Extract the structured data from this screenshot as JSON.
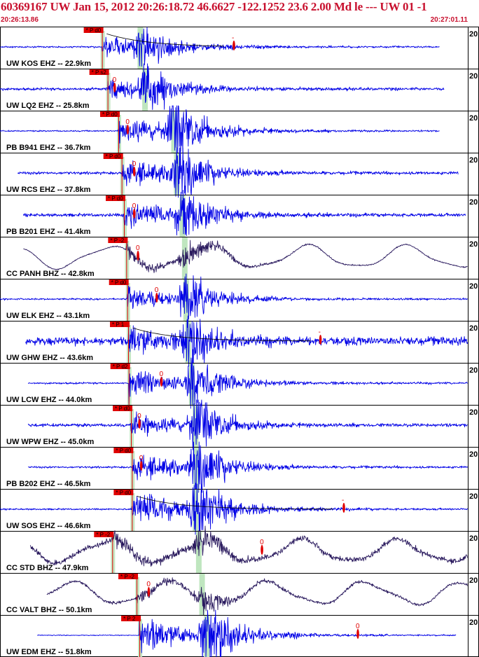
{
  "header": {
    "title": "60369167 UW Jan 15, 2012 20:26:18.72    46.6627 -122.1252 23.6 2.00 Md le --- UW 01   -1",
    "start_time": "20:26:13.86",
    "end_time": "20:27:01.11"
  },
  "colors": {
    "trace_short": "#0000e6",
    "trace_broadband": "#2a1a5e",
    "header_text": "#c8102e",
    "pick_box": "#e00000",
    "s_window": "#bfe6bf",
    "baseline_pick": "#2a2a2a"
  },
  "chart_data": {
    "type": "seismogram",
    "title": "60369167 UW Jan 15, 2012 20:26:18.72    46.6627 -122.1252 23.6 2.00 Md le --- UW 01   -1",
    "time_window": [
      "20:26:13.86",
      "20:27:01.11"
    ],
    "traces": [
      {
        "label": "UW KOS EHZ -- 22.9km",
        "gain": "20",
        "pick": "P d0",
        "station_type": "short",
        "pick_t": 0.218,
        "s_t": 0.3,
        "o_t": 0.5,
        "o_text": "-",
        "start_t": 0.0,
        "end_t": 0.94,
        "noise": 0.06,
        "eq_amp": 0.55,
        "coda_curve": true,
        "lp": false
      },
      {
        "label": "UW LQ2 EHZ -- 25.8km",
        "gain": "20",
        "pick": "P s2",
        "station_type": "short",
        "pick_t": 0.23,
        "s_t": 0.31,
        "o_t": 0.245,
        "o_text": "0",
        "start_t": 0.0,
        "end_t": 0.95,
        "noise": 0.1,
        "eq_amp": 0.6,
        "coda_curve": false,
        "lp": false
      },
      {
        "label": "PB B941 EHZ -- 36.7km",
        "gain": "20",
        "pick": "P d0",
        "station_type": "short",
        "pick_t": 0.253,
        "s_t": 0.372,
        "o_t": 0.273,
        "o_text": "0",
        "start_t": 0.0,
        "end_t": 0.94,
        "noise": 0.05,
        "eq_amp": 0.8,
        "coda_curve": false,
        "lp": false
      },
      {
        "label": "UW RCS EHZ -- 37.8km",
        "gain": "20",
        "pick": "P d0",
        "station_type": "short",
        "pick_t": 0.26,
        "s_t": 0.378,
        "o_t": 0.287,
        "o_text": "0",
        "start_t": 0.038,
        "end_t": 0.98,
        "noise": 0.1,
        "eq_amp": 0.75,
        "coda_curve": false,
        "lp": false
      },
      {
        "label": "PB B201 EHZ -- 41.4km",
        "gain": "20",
        "pick": "P d0",
        "station_type": "short",
        "pick_t": 0.265,
        "s_t": 0.39,
        "o_t": 0.287,
        "o_text": "0",
        "start_t": 0.05,
        "end_t": 0.995,
        "noise": 0.12,
        "eq_amp": 0.7,
        "coda_curve": false,
        "lp": false
      },
      {
        "label": "CC PANH BHZ -- 42.8km",
        "gain": "20",
        "pick": "P -2",
        "station_type": "broadband",
        "pick_t": 0.27,
        "s_t": 0.395,
        "o_t": 0.295,
        "o_text": "0",
        "start_t": 0.05,
        "end_t": 1.0,
        "noise": 0.04,
        "eq_amp": 0.3,
        "coda_curve": false,
        "lp": true
      },
      {
        "label": "UW ELK EHZ -- 43.1km",
        "gain": "20",
        "pick": "P d0",
        "station_type": "short",
        "pick_t": 0.272,
        "s_t": 0.398,
        "o_t": 0.335,
        "o_text": "0",
        "start_t": 0.0,
        "end_t": 1.0,
        "noise": 0.06,
        "eq_amp": 0.65,
        "coda_curve": false,
        "lp": false
      },
      {
        "label": "UW GHW EHZ -- 43.6km",
        "gain": "20",
        "pick": "P 1",
        "station_type": "short",
        "pick_t": 0.274,
        "s_t": 0.402,
        "o_t": 0.685,
        "o_text": "-",
        "start_t": 0.055,
        "end_t": 1.0,
        "noise": 0.3,
        "eq_amp": 0.75,
        "coda_curve": true,
        "lp": false
      },
      {
        "label": "UW LCW EHZ -- 44.0km",
        "gain": "20",
        "pick": "P d2",
        "station_type": "short",
        "pick_t": 0.275,
        "s_t": 0.41,
        "o_t": 0.345,
        "o_text": "0",
        "start_t": 0.06,
        "end_t": 1.0,
        "noise": 0.07,
        "eq_amp": 0.7,
        "coda_curve": false,
        "lp": false
      },
      {
        "label": "UW WPW EHZ -- 45.0km",
        "gain": "20",
        "pick": "P d0",
        "station_type": "short",
        "pick_t": 0.28,
        "s_t": 0.418,
        "o_t": 0.298,
        "o_text": "0",
        "start_t": 0.06,
        "end_t": 1.0,
        "noise": 0.12,
        "eq_amp": 0.7,
        "coda_curve": false,
        "lp": false
      },
      {
        "label": "PB B202 EHZ -- 46.5km",
        "gain": "20",
        "pick": "P d0",
        "station_type": "short",
        "pick_t": 0.282,
        "s_t": 0.42,
        "o_t": 0.302,
        "o_text": "0",
        "start_t": 0.06,
        "end_t": 1.0,
        "noise": 0.07,
        "eq_amp": 0.75,
        "coda_curve": false,
        "lp": false
      },
      {
        "label": "UW SOS EHZ -- 46.6km",
        "gain": "20",
        "pick": "P d0",
        "station_type": "short",
        "pick_t": 0.282,
        "s_t": 0.418,
        "o_t": 0.735,
        "o_text": "-",
        "start_t": 0.0,
        "end_t": 1.0,
        "noise": 0.06,
        "eq_amp": 0.85,
        "coda_curve": true,
        "lp": false
      },
      {
        "label": "CC STD BHZ -- 47.9km",
        "gain": "20",
        "pick": "P -2",
        "station_type": "broadband",
        "pick_t": 0.24,
        "s_t": 0.425,
        "o_t": 0.56,
        "o_text": "0",
        "start_t": 0.065,
        "end_t": 1.0,
        "noise": 0.2,
        "eq_amp": 0.35,
        "coda_curve": false,
        "lp": true
      },
      {
        "label": "CC VALT BHZ -- 50.1km",
        "gain": "20",
        "pick": "P -2",
        "station_type": "broadband",
        "pick_t": 0.292,
        "s_t": 0.432,
        "o_t": 0.318,
        "o_text": "0",
        "start_t": 0.1,
        "end_t": 1.0,
        "noise": 0.1,
        "eq_amp": 0.3,
        "coda_curve": false,
        "lp": true
      },
      {
        "label": "UW EDM EHZ -- 51.8km",
        "gain": "20",
        "pick": "P 2",
        "station_type": "short",
        "pick_t": 0.298,
        "s_t": 0.442,
        "o_t": 0.765,
        "o_text": "0",
        "start_t": 0.08,
        "end_t": 0.975,
        "noise": 0.03,
        "eq_amp": 0.85,
        "coda_curve": false,
        "lp": false
      }
    ]
  }
}
